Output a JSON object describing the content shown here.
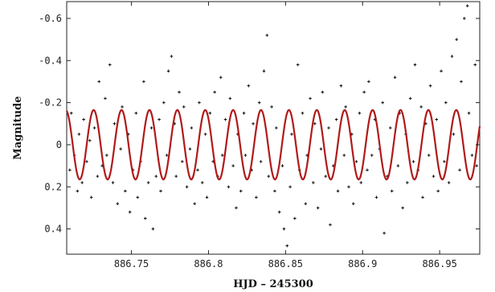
{
  "chart_data": {
    "type": "scatter",
    "title": "",
    "xlabel": "HJD  – 245300",
    "ylabel": "Magnitude",
    "xlim": [
      886.708,
      886.976
    ],
    "ylim": [
      -0.68,
      0.52
    ],
    "y_reversed": true,
    "grid": false,
    "x_ticks": [
      886.75,
      886.8,
      886.85,
      886.9,
      886.95
    ],
    "x_tick_labels": [
      "886.75",
      "886.8",
      "886.85",
      "886.9",
      "886.95"
    ],
    "y_ticks": [
      -0.6,
      -0.4,
      -0.2,
      0,
      0.2,
      0.4
    ],
    "y_tick_labels": [
      "-0.6",
      "-0.4",
      "-0.2",
      "0",
      "0.2",
      "0.4"
    ],
    "series": [
      {
        "kind": "points",
        "marker": "plus",
        "color": "#111111",
        "points": [
          [
            886.71,
            0.12
          ],
          [
            886.711,
            -0.15
          ],
          [
            886.713,
            0.05
          ],
          [
            886.715,
            0.22
          ],
          [
            886.716,
            -0.05
          ],
          [
            886.718,
            0.18
          ],
          [
            886.719,
            -0.12
          ],
          [
            886.721,
            0.08
          ],
          [
            886.723,
            -0.02
          ],
          [
            886.724,
            0.25
          ],
          [
            886.726,
            -0.08
          ],
          [
            886.728,
            0.15
          ],
          [
            886.729,
            -0.3
          ],
          [
            886.731,
            0.1
          ],
          [
            886.733,
            -0.22
          ],
          [
            886.734,
            0.05
          ],
          [
            886.736,
            -0.38
          ],
          [
            886.738,
            0.18
          ],
          [
            886.739,
            -0.1
          ],
          [
            886.741,
            0.28
          ],
          [
            886.743,
            0.02
          ],
          [
            886.744,
            -0.18
          ],
          [
            886.746,
            0.22
          ],
          [
            886.748,
            -0.05
          ],
          [
            886.749,
            0.32
          ],
          [
            886.751,
            0.12
          ],
          [
            886.753,
            -0.15
          ],
          [
            886.754,
            0.25
          ],
          [
            886.756,
            0.08
          ],
          [
            886.758,
            -0.3
          ],
          [
            886.759,
            0.35
          ],
          [
            886.761,
            0.18
          ],
          [
            886.763,
            -0.08
          ],
          [
            886.764,
            0.4
          ],
          [
            886.766,
            0.15
          ],
          [
            886.768,
            -0.12
          ],
          [
            886.769,
            0.22
          ],
          [
            886.771,
            -0.2
          ],
          [
            886.773,
            0.05
          ],
          [
            886.774,
            -0.35
          ],
          [
            886.776,
            -0.42
          ],
          [
            886.778,
            -0.1
          ],
          [
            886.779,
            0.15
          ],
          [
            886.781,
            -0.25
          ],
          [
            886.783,
            0.08
          ],
          [
            886.784,
            -0.18
          ],
          [
            886.786,
            0.2
          ],
          [
            886.788,
            0.02
          ],
          [
            886.789,
            -0.08
          ],
          [
            886.791,
            0.28
          ],
          [
            886.793,
            0.12
          ],
          [
            886.794,
            -0.2
          ],
          [
            886.796,
            0.18
          ],
          [
            886.798,
            -0.05
          ],
          [
            886.799,
            0.25
          ],
          [
            886.801,
            -0.15
          ],
          [
            886.803,
            0.08
          ],
          [
            886.804,
            -0.25
          ],
          [
            886.806,
            0.15
          ],
          [
            886.808,
            -0.32
          ],
          [
            886.809,
            0.05
          ],
          [
            886.811,
            -0.12
          ],
          [
            886.813,
            0.2
          ],
          [
            886.814,
            -0.22
          ],
          [
            886.816,
            0.1
          ],
          [
            886.818,
            0.3
          ],
          [
            886.819,
            -0.05
          ],
          [
            886.821,
            0.22
          ],
          [
            886.823,
            -0.15
          ],
          [
            886.824,
            0.05
          ],
          [
            886.826,
            -0.28
          ],
          [
            886.828,
            0.12
          ],
          [
            886.829,
            -0.1
          ],
          [
            886.831,
            0.25
          ],
          [
            886.833,
            -0.2
          ],
          [
            886.834,
            0.08
          ],
          [
            886.836,
            -0.35
          ],
          [
            886.838,
            -0.52
          ],
          [
            886.839,
            0.15
          ],
          [
            886.841,
            -0.18
          ],
          [
            886.843,
            0.22
          ],
          [
            886.844,
            -0.08
          ],
          [
            886.846,
            0.32
          ],
          [
            886.848,
            0.1
          ],
          [
            886.849,
            0.4
          ],
          [
            886.851,
            0.48
          ],
          [
            886.853,
            0.2
          ],
          [
            886.854,
            -0.05
          ],
          [
            886.856,
            0.35
          ],
          [
            886.858,
            -0.38
          ],
          [
            886.859,
            0.12
          ],
          [
            886.861,
            -0.15
          ],
          [
            886.863,
            0.28
          ],
          [
            886.864,
            0.05
          ],
          [
            886.866,
            -0.22
          ],
          [
            886.868,
            0.18
          ],
          [
            886.869,
            -0.1
          ],
          [
            886.871,
            0.3
          ],
          [
            886.873,
            0.02
          ],
          [
            886.874,
            -0.25
          ],
          [
            886.876,
            0.15
          ],
          [
            886.878,
            -0.08
          ],
          [
            886.879,
            0.38
          ],
          [
            886.881,
            0.1
          ],
          [
            886.883,
            -0.12
          ],
          [
            886.884,
            0.22
          ],
          [
            886.886,
            -0.28
          ],
          [
            886.888,
            0.05
          ],
          [
            886.889,
            -0.18
          ],
          [
            886.891,
            0.2
          ],
          [
            886.893,
            -0.05
          ],
          [
            886.894,
            0.28
          ],
          [
            886.896,
            0.08
          ],
          [
            886.898,
            -0.15
          ],
          [
            886.899,
            0.18
          ],
          [
            886.901,
            -0.25
          ],
          [
            886.903,
            0.12
          ],
          [
            886.904,
            -0.3
          ],
          [
            886.906,
            0.05
          ],
          [
            886.908,
            -0.12
          ],
          [
            886.909,
            0.25
          ],
          [
            886.911,
            0.02
          ],
          [
            886.913,
            -0.2
          ],
          [
            886.914,
            0.42
          ],
          [
            886.916,
            0.15
          ],
          [
            886.918,
            -0.08
          ],
          [
            886.919,
            0.22
          ],
          [
            886.921,
            -0.32
          ],
          [
            886.923,
            0.1
          ],
          [
            886.924,
            -0.15
          ],
          [
            886.926,
            0.3
          ],
          [
            886.928,
            -0.05
          ],
          [
            886.929,
            0.18
          ],
          [
            886.931,
            -0.22
          ],
          [
            886.933,
            0.08
          ],
          [
            886.934,
            -0.38
          ],
          [
            886.936,
            0.12
          ],
          [
            886.938,
            -0.18
          ],
          [
            886.939,
            0.25
          ],
          [
            886.941,
            -0.1
          ],
          [
            886.943,
            0.05
          ],
          [
            886.944,
            -0.28
          ],
          [
            886.946,
            0.15
          ],
          [
            886.948,
            -0.12
          ],
          [
            886.949,
            0.22
          ],
          [
            886.951,
            -0.35
          ],
          [
            886.953,
            0.08
          ],
          [
            886.954,
            -0.2
          ],
          [
            886.956,
            0.18
          ],
          [
            886.958,
            -0.42
          ],
          [
            886.959,
            -0.05
          ],
          [
            886.961,
            -0.5
          ],
          [
            886.963,
            0.12
          ],
          [
            886.964,
            -0.3
          ],
          [
            886.966,
            -0.6
          ],
          [
            886.968,
            -0.66
          ],
          [
            886.969,
            -0.15
          ],
          [
            886.971,
            0.05
          ],
          [
            886.973,
            -0.38
          ],
          [
            886.974,
            0.1
          ]
        ]
      },
      {
        "kind": "line",
        "model": "sinusoid",
        "color": "#b01a1a",
        "amplitude": 0.165,
        "period": 0.0181,
        "reference_max": 886.7255,
        "offset": 0
      }
    ]
  }
}
